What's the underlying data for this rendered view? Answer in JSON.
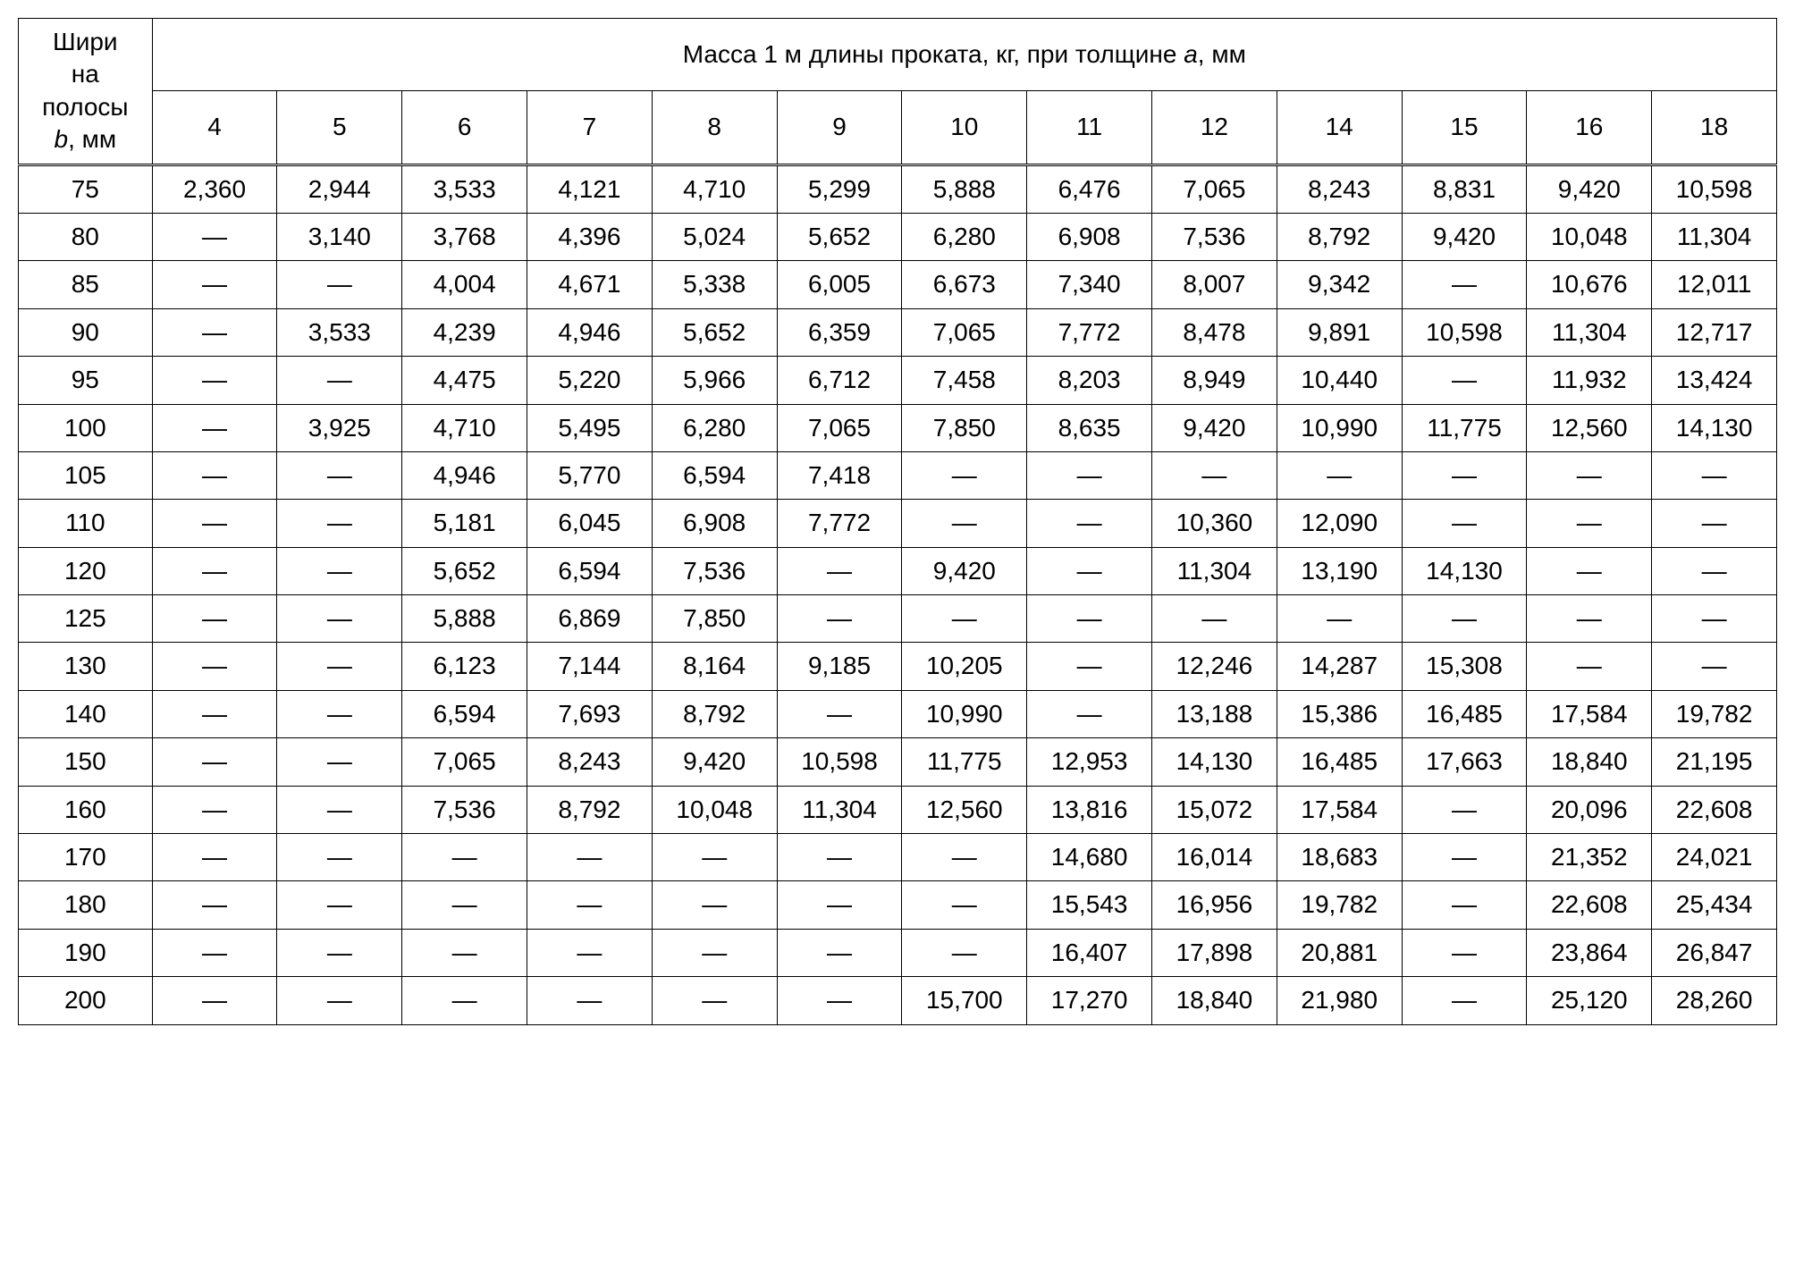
{
  "table": {
    "header": {
      "rowHeaderLine1": "Шири",
      "rowHeaderLine2": "на",
      "rowHeaderLine3": "полосы",
      "rowHeaderLine4Prefix": "b",
      "rowHeaderLine4Suffix": ", мм",
      "spanTitlePrefix": "Масса 1 м длины проката, кг, при толщине ",
      "spanTitleItalic": "а",
      "spanTitleSuffix": ", мм",
      "columns": [
        "4",
        "5",
        "6",
        "7",
        "8",
        "9",
        "10",
        "11",
        "12",
        "14",
        "15",
        "16",
        "18"
      ]
    },
    "rows": [
      {
        "b": "75",
        "v": [
          "2,360",
          "2,944",
          "3,533",
          "4,121",
          "4,710",
          "5,299",
          "5,888",
          "6,476",
          "7,065",
          "8,243",
          "8,831",
          "9,420",
          "10,598"
        ]
      },
      {
        "b": "80",
        "v": [
          "—",
          "3,140",
          "3,768",
          "4,396",
          "5,024",
          "5,652",
          "6,280",
          "6,908",
          "7,536",
          "8,792",
          "9,420",
          "10,048",
          "11,304"
        ]
      },
      {
        "b": "85",
        "v": [
          "—",
          "—",
          "4,004",
          "4,671",
          "5,338",
          "6,005",
          "6,673",
          "7,340",
          "8,007",
          "9,342",
          "—",
          "10,676",
          "12,011"
        ]
      },
      {
        "b": "90",
        "v": [
          "—",
          "3,533",
          "4,239",
          "4,946",
          "5,652",
          "6,359",
          "7,065",
          "7,772",
          "8,478",
          "9,891",
          "10,598",
          "11,304",
          "12,717"
        ]
      },
      {
        "b": "95",
        "v": [
          "—",
          "—",
          "4,475",
          "5,220",
          "5,966",
          "6,712",
          "7,458",
          "8,203",
          "8,949",
          "10,440",
          "—",
          "11,932",
          "13,424"
        ]
      },
      {
        "b": "100",
        "v": [
          "—",
          "3,925",
          "4,710",
          "5,495",
          "6,280",
          "7,065",
          "7,850",
          "8,635",
          "9,420",
          "10,990",
          "11,775",
          "12,560",
          "14,130"
        ]
      },
      {
        "b": "105",
        "v": [
          "—",
          "—",
          "4,946",
          "5,770",
          "6,594",
          "7,418",
          "—",
          "—",
          "—",
          "—",
          "—",
          "—",
          "—"
        ]
      },
      {
        "b": "110",
        "v": [
          "—",
          "—",
          "5,181",
          "6,045",
          "6,908",
          "7,772",
          "—",
          "—",
          "10,360",
          "12,090",
          "—",
          "—",
          "—"
        ]
      },
      {
        "b": "120",
        "v": [
          "—",
          "—",
          "5,652",
          "6,594",
          "7,536",
          "—",
          "9,420",
          "—",
          "11,304",
          "13,190",
          "14,130",
          "—",
          "—"
        ]
      },
      {
        "b": "125",
        "v": [
          "—",
          "—",
          "5,888",
          "6,869",
          "7,850",
          "—",
          "—",
          "—",
          "—",
          "—",
          "—",
          "—",
          "—"
        ]
      },
      {
        "b": "130",
        "v": [
          "—",
          "—",
          "6,123",
          "7,144",
          "8,164",
          "9,185",
          "10,205",
          "—",
          "12,246",
          "14,287",
          "15,308",
          "—",
          "—"
        ]
      },
      {
        "b": "140",
        "v": [
          "—",
          "—",
          "6,594",
          "7,693",
          "8,792",
          "—",
          "10,990",
          "—",
          "13,188",
          "15,386",
          "16,485",
          "17,584",
          "19,782"
        ]
      },
      {
        "b": "150",
        "v": [
          "—",
          "—",
          "7,065",
          "8,243",
          "9,420",
          "10,598",
          "11,775",
          "12,953",
          "14,130",
          "16,485",
          "17,663",
          "18,840",
          "21,195"
        ]
      },
      {
        "b": "160",
        "v": [
          "—",
          "—",
          "7,536",
          "8,792",
          "10,048",
          "11,304",
          "12,560",
          "13,816",
          "15,072",
          "17,584",
          "—",
          "20,096",
          "22,608"
        ]
      },
      {
        "b": "170",
        "v": [
          "—",
          "—",
          "—",
          "—",
          "—",
          "—",
          "—",
          "14,680",
          "16,014",
          "18,683",
          "—",
          "21,352",
          "24,021"
        ]
      },
      {
        "b": "180",
        "v": [
          "—",
          "—",
          "—",
          "—",
          "—",
          "—",
          "—",
          "15,543",
          "16,956",
          "19,782",
          "—",
          "22,608",
          "25,434"
        ]
      },
      {
        "b": "190",
        "v": [
          "—",
          "—",
          "—",
          "—",
          "—",
          "—",
          "—",
          "16,407",
          "17,898",
          "20,881",
          "—",
          "23,864",
          "26,847"
        ]
      },
      {
        "b": "200",
        "v": [
          "—",
          "—",
          "—",
          "—",
          "—",
          "—",
          "15,700",
          "17,270",
          "18,840",
          "21,980",
          "—",
          "25,120",
          "28,260"
        ]
      }
    ],
    "style": {
      "fontFamily": "Arial",
      "fontSize": 28,
      "textColor": "#000000",
      "borderColor": "#000000",
      "background": "#ffffff",
      "dash": "—"
    }
  }
}
